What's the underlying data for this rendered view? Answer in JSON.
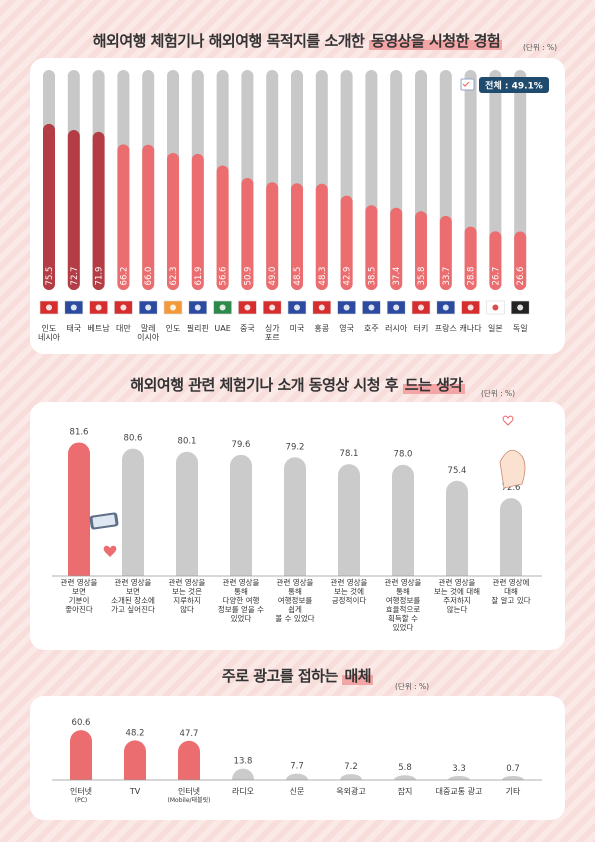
{
  "section1": {
    "title_pre": "해외여행 체험기나 해외여행 목적지를 소개한 ",
    "title_hl": "동영상을 시청한 경험",
    "unit": "(단위 : %)",
    "total_label": "전체 : 49.1%"
  },
  "section2": {
    "title_pre": "해외여행 관련 체험기나 소개 동영상 시청 후 ",
    "title_hl": "드는 생각",
    "unit": "(단위 : %)"
  },
  "section3": {
    "title_pre": "주로 광고를 접하는 ",
    "title_hl": "매체",
    "unit": "(단위 : %)"
  },
  "chart_data": [
    {
      "type": "bar",
      "categories": [
        "인도\n네시아",
        "태국",
        "베트남",
        "대만",
        "말레\n이시아",
        "인도",
        "필리핀",
        "UAE",
        "중국",
        "싱가\n포르",
        "미국",
        "홍콩",
        "영국",
        "호주",
        "러시아",
        "터키",
        "프랑스",
        "캐나다",
        "일본",
        "독일"
      ],
      "values": [
        75.5,
        72.7,
        71.9,
        66.2,
        66.0,
        62.3,
        61.9,
        56.6,
        50.9,
        49.0,
        48.5,
        48.3,
        42.9,
        38.5,
        37.4,
        35.8,
        33.7,
        28.8,
        26.7,
        26.6
      ],
      "ylim": [
        0,
        100
      ],
      "annotations": [
        "전체 : 49.1%"
      ],
      "colors": {
        "dark": "#b43c44",
        "light": "#ec6d6f",
        "track": "#c8c8c8"
      }
    },
    {
      "type": "bar",
      "categories": [
        "관련 영상을\n보면\n기분이\n좋아진다",
        "관련 영상을\n보면\n소개된 장소에\n가고 싶어진다",
        "관련 영상을\n보는 것은\n지루하지\n않다",
        "관련 영상을\n통해\n다양한 여행\n정보를 얻을 수\n있었다",
        "관련 영상을\n통해\n여행정보를\n쉽게\n볼 수 있었다",
        "관련 영상을\n보는 것에\n긍정적이다",
        "관련 영상을\n통해\n여행정보를\n효율적으로\n획득할 수\n있었다",
        "관련 영상을\n보는 것에 대해\n주저하지\n않는다",
        "관련 영상에\n대해\n잘 알고 있다"
      ],
      "values": [
        81.6,
        80.6,
        80.1,
        79.6,
        79.2,
        78.1,
        78.0,
        75.4,
        72.6
      ],
      "ylim": [
        60,
        82
      ],
      "colors": {
        "highlight": "#ec6d6f",
        "other": "#cbcbcb"
      }
    },
    {
      "type": "bar",
      "categories": [
        "인터넷\n(PC)",
        "TV",
        "인터넷\n(Mobile/태블릿)",
        "라디오",
        "신문",
        "옥외광고",
        "잡지",
        "대중교통 광고",
        "기타"
      ],
      "values": [
        60.6,
        48.2,
        47.7,
        13.8,
        7.7,
        7.2,
        5.8,
        3.3,
        0.7
      ],
      "ylim": [
        0,
        62
      ],
      "colors": {
        "highlight": "#ec6d6f",
        "other": "#cbcbcb"
      }
    }
  ]
}
